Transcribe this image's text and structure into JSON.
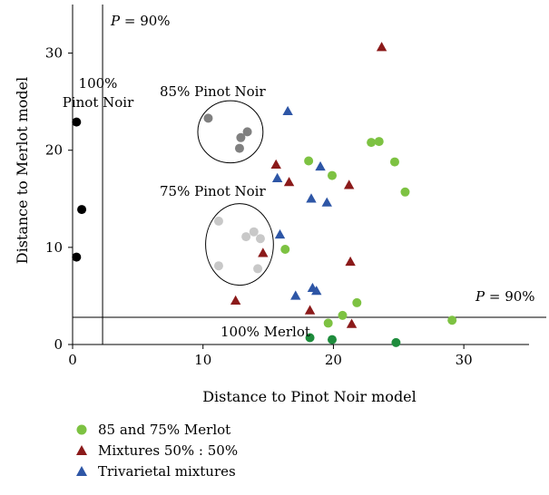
{
  "chart_data": {
    "type": "scatter",
    "xlabel": "Distance to Pinot Noir model",
    "ylabel": "Distance to Merlot model",
    "xlim": [
      0,
      35
    ],
    "ylim": [
      0,
      35
    ],
    "xticks": [
      0,
      10,
      20,
      30
    ],
    "yticks": [
      0,
      10,
      20,
      30
    ],
    "grid": false,
    "legend_position": "bottom-left",
    "thresholds": [
      {
        "orientation": "vertical",
        "value": 2.3,
        "label_prefix": "P",
        "label_suffix": " = 90%"
      },
      {
        "orientation": "horizontal",
        "value": 2.8,
        "label_prefix": "P",
        "label_suffix": " = 90%"
      }
    ],
    "annotations": [
      {
        "text_line1": "100%",
        "text_line2": "Pinot Noir"
      },
      {
        "text": "85% Pinot Noir"
      },
      {
        "text": "75% Pinot Noir"
      },
      {
        "text": "100% Merlot"
      }
    ],
    "ellipses": [
      {
        "label": "85% Pinot Noir",
        "cx": 12.1,
        "cy": 21.9,
        "rx": 2.5,
        "ry": 3.2
      },
      {
        "label": "75% Pinot Noir",
        "cx": 12.8,
        "cy": 10.3,
        "rx": 2.6,
        "ry": 4.2
      }
    ],
    "series": [
      {
        "name": "",
        "color": "#000000",
        "marker": "circle",
        "points": [
          [
            0.3,
            22.9
          ],
          [
            0.7,
            13.9
          ],
          [
            0.3,
            9.0
          ]
        ]
      },
      {
        "name": "",
        "color": "#808080",
        "marker": "circle",
        "points": [
          [
            10.4,
            23.3
          ],
          [
            12.9,
            21.3
          ],
          [
            13.4,
            21.9
          ],
          [
            12.8,
            20.2
          ]
        ]
      },
      {
        "name": "",
        "color": "#c8c8c8",
        "marker": "circle",
        "points": [
          [
            11.2,
            12.7
          ],
          [
            13.3,
            11.1
          ],
          [
            13.9,
            11.6
          ],
          [
            14.4,
            10.9
          ],
          [
            11.2,
            8.1
          ],
          [
            14.2,
            7.8
          ]
        ]
      },
      {
        "name": "",
        "color": "#1e8c3c",
        "marker": "circle",
        "points": [
          [
            18.2,
            0.7
          ],
          [
            19.9,
            0.5
          ],
          [
            24.8,
            0.2
          ]
        ]
      },
      {
        "name": "85 and 75% Merlot",
        "color": "#7dc242",
        "marker": "circle",
        "points": [
          [
            18.1,
            18.9
          ],
          [
            19.9,
            17.4
          ],
          [
            22.9,
            20.8
          ],
          [
            23.5,
            20.9
          ],
          [
            24.7,
            18.8
          ],
          [
            25.5,
            15.7
          ],
          [
            16.3,
            9.8
          ],
          [
            21.8,
            4.3
          ],
          [
            20.7,
            3.0
          ],
          [
            19.6,
            2.2
          ],
          [
            29.1,
            2.5
          ]
        ]
      },
      {
        "name": "Mixtures 50% : 50%",
        "color": "#8b1a1a",
        "marker": "triangle",
        "points": [
          [
            23.7,
            30.6
          ],
          [
            15.6,
            18.5
          ],
          [
            16.6,
            16.7
          ],
          [
            21.2,
            16.4
          ],
          [
            14.6,
            9.4
          ],
          [
            21.3,
            8.5
          ],
          [
            12.5,
            4.5
          ],
          [
            18.2,
            3.5
          ],
          [
            21.4,
            2.1
          ]
        ]
      },
      {
        "name": "Trivarietal mixtures",
        "color": "#2e56a6",
        "marker": "triangle",
        "points": [
          [
            16.5,
            24.0
          ],
          [
            19.0,
            18.3
          ],
          [
            15.7,
            17.1
          ],
          [
            18.3,
            15.0
          ],
          [
            19.5,
            14.6
          ],
          [
            15.9,
            11.3
          ],
          [
            17.1,
            5.0
          ],
          [
            18.4,
            5.8
          ],
          [
            18.7,
            5.5
          ]
        ]
      }
    ]
  }
}
